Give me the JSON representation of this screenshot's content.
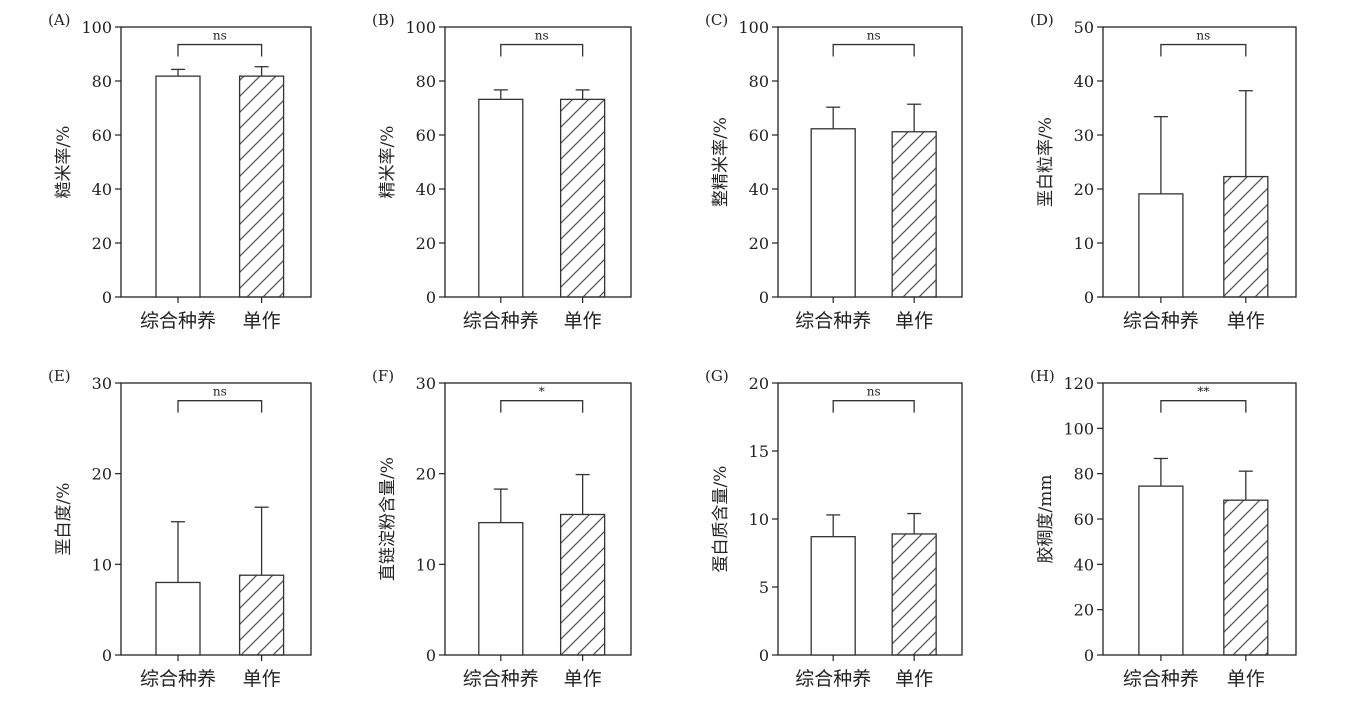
{
  "chart_data": [
    {
      "type": "bar",
      "panel_label": "(A)",
      "ylabel": "糙米率/%",
      "categories": [
        "综合种养",
        "单作"
      ],
      "values": [
        81.8,
        81.8
      ],
      "errors": [
        2.5,
        3.5
      ],
      "ylim": [
        0,
        100
      ],
      "yticks": [
        0,
        20,
        40,
        60,
        80,
        100
      ],
      "significance": "ns",
      "patterns": [
        "none",
        "hatch"
      ]
    },
    {
      "type": "bar",
      "panel_label": "(B)",
      "ylabel": "精米率/%",
      "categories": [
        "综合种养",
        "单作"
      ],
      "values": [
        73.2,
        73.2
      ],
      "errors": [
        3.5,
        3.5
      ],
      "ylim": [
        0,
        100
      ],
      "yticks": [
        0,
        20,
        40,
        60,
        80,
        100
      ],
      "significance": "ns",
      "patterns": [
        "none",
        "hatch"
      ]
    },
    {
      "type": "bar",
      "panel_label": "(C)",
      "ylabel": "整精米率/%",
      "categories": [
        "综合种养",
        "单作"
      ],
      "values": [
        62.3,
        61.2
      ],
      "errors": [
        8.0,
        10.2
      ],
      "ylim": [
        0,
        100
      ],
      "yticks": [
        0,
        20,
        40,
        60,
        80,
        100
      ],
      "significance": "ns",
      "patterns": [
        "none",
        "hatch"
      ]
    },
    {
      "type": "bar",
      "panel_label": "(D)",
      "ylabel": "垩白粒率/%",
      "categories": [
        "综合种养",
        "单作"
      ],
      "values": [
        19.1,
        22.3
      ],
      "errors": [
        14.3,
        15.9
      ],
      "ylim": [
        0,
        50
      ],
      "yticks": [
        0,
        10,
        20,
        30,
        40,
        50
      ],
      "significance": "ns",
      "patterns": [
        "none",
        "hatch"
      ]
    },
    {
      "type": "bar",
      "panel_label": "(E)",
      "ylabel": "垩白度/%",
      "categories": [
        "综合种养",
        "单作"
      ],
      "values": [
        8.0,
        8.8
      ],
      "errors": [
        6.7,
        7.5
      ],
      "ylim": [
        0,
        30
      ],
      "yticks": [
        0,
        10,
        20,
        30
      ],
      "significance": "ns",
      "patterns": [
        "none",
        "hatch"
      ]
    },
    {
      "type": "bar",
      "panel_label": "(F)",
      "ylabel": "直链淀粉含量/%",
      "categories": [
        "综合种养",
        "单作"
      ],
      "values": [
        14.6,
        15.5
      ],
      "errors": [
        3.7,
        4.4
      ],
      "ylim": [
        0,
        30
      ],
      "yticks": [
        0,
        10,
        20,
        30
      ],
      "significance": "*",
      "patterns": [
        "none",
        "hatch"
      ]
    },
    {
      "type": "bar",
      "panel_label": "(G)",
      "ylabel": "蛋白质含量/%",
      "categories": [
        "综合种养",
        "单作"
      ],
      "values": [
        8.7,
        8.9
      ],
      "errors": [
        1.6,
        1.5
      ],
      "ylim": [
        0,
        20
      ],
      "yticks": [
        0,
        5,
        10,
        15,
        20
      ],
      "significance": "ns",
      "patterns": [
        "none",
        "hatch"
      ]
    },
    {
      "type": "bar",
      "panel_label": "(H)",
      "ylabel": "胶稠度/mm",
      "categories": [
        "综合种养",
        "单作"
      ],
      "values": [
        74.5,
        68.3
      ],
      "errors": [
        12.2,
        12.8
      ],
      "ylim": [
        0,
        120
      ],
      "yticks": [
        0,
        20,
        40,
        60,
        80,
        100,
        120
      ],
      "significance": "**",
      "patterns": [
        "none",
        "hatch"
      ]
    }
  ]
}
